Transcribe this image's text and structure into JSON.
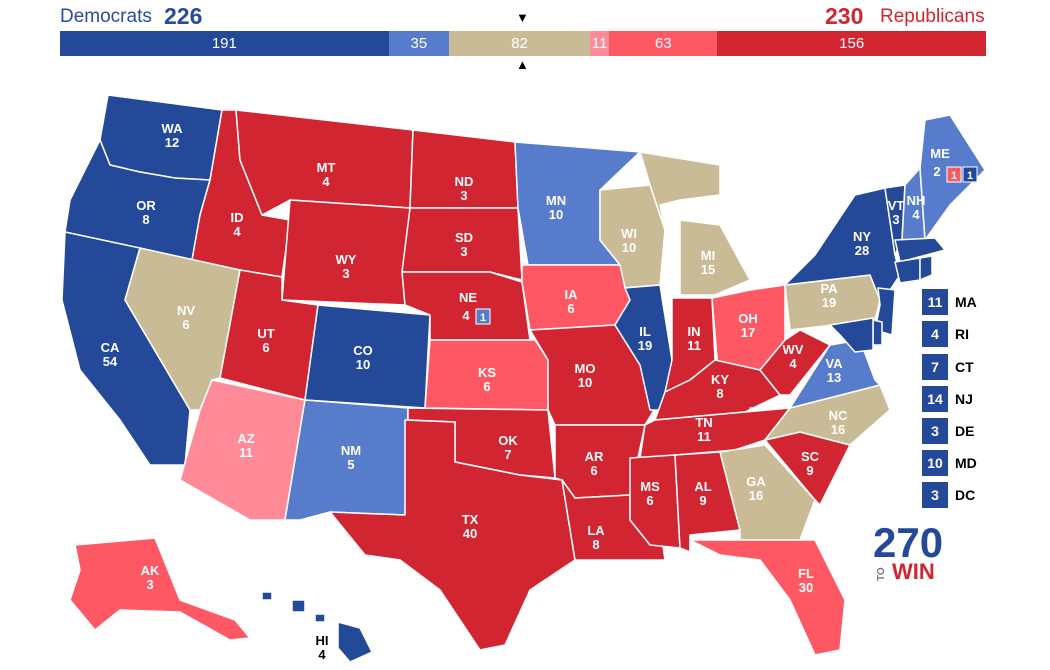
{
  "header": {
    "dem_label": "Democrats",
    "dem_total": "226",
    "rep_total": "230",
    "rep_label": "Republicans",
    "marker_down": "▼",
    "marker_up": "▲"
  },
  "colors": {
    "safe_dem": "#244999",
    "likely_dem": "#577ccc",
    "tossup": "#c9bb95",
    "tilt_rep": "#ff8b98",
    "likely_rep": "#ff5865",
    "safe_rep": "#d22532"
  },
  "tally_bar": [
    {
      "label": "191",
      "value": 191,
      "color": "#244999"
    },
    {
      "label": "35",
      "value": 35,
      "color": "#577ccc"
    },
    {
      "label": "82",
      "value": 82,
      "color": "#c9bb95"
    },
    {
      "label": "11",
      "value": 11,
      "color": "#ff8b98"
    },
    {
      "label": "63",
      "value": 63,
      "color": "#ff5865"
    },
    {
      "label": "156",
      "value": 156,
      "color": "#d22532"
    }
  ],
  "states": [
    {
      "abbr": "WA",
      "votes": "12",
      "color": "#244999"
    },
    {
      "abbr": "OR",
      "votes": "8",
      "color": "#244999"
    },
    {
      "abbr": "CA",
      "votes": "54",
      "color": "#244999"
    },
    {
      "abbr": "ID",
      "votes": "4",
      "color": "#d22532"
    },
    {
      "abbr": "NV",
      "votes": "6",
      "color": "#c9bb95"
    },
    {
      "abbr": "MT",
      "votes": "4",
      "color": "#d22532"
    },
    {
      "abbr": "WY",
      "votes": "3",
      "color": "#d22532"
    },
    {
      "abbr": "UT",
      "votes": "6",
      "color": "#d22532"
    },
    {
      "abbr": "AZ",
      "votes": "11",
      "color": "#ff8b98"
    },
    {
      "abbr": "CO",
      "votes": "10",
      "color": "#244999"
    },
    {
      "abbr": "NM",
      "votes": "5",
      "color": "#577ccc"
    },
    {
      "abbr": "ND",
      "votes": "3",
      "color": "#d22532"
    },
    {
      "abbr": "SD",
      "votes": "3",
      "color": "#d22532"
    },
    {
      "abbr": "NE",
      "votes": "4",
      "color": "#d22532"
    },
    {
      "abbr": "KS",
      "votes": "6",
      "color": "#ff5865"
    },
    {
      "abbr": "OK",
      "votes": "7",
      "color": "#d22532"
    },
    {
      "abbr": "TX",
      "votes": "40",
      "color": "#d22532"
    },
    {
      "abbr": "MN",
      "votes": "10",
      "color": "#577ccc"
    },
    {
      "abbr": "IA",
      "votes": "6",
      "color": "#ff5865"
    },
    {
      "abbr": "MO",
      "votes": "10",
      "color": "#d22532"
    },
    {
      "abbr": "AR",
      "votes": "6",
      "color": "#d22532"
    },
    {
      "abbr": "LA",
      "votes": "8",
      "color": "#d22532"
    },
    {
      "abbr": "WI",
      "votes": "10",
      "color": "#c9bb95"
    },
    {
      "abbr": "IL",
      "votes": "19",
      "color": "#244999"
    },
    {
      "abbr": "MI",
      "votes": "15",
      "color": "#c9bb95"
    },
    {
      "abbr": "IN",
      "votes": "11",
      "color": "#d22532"
    },
    {
      "abbr": "OH",
      "votes": "17",
      "color": "#ff5865"
    },
    {
      "abbr": "KY",
      "votes": "8",
      "color": "#d22532"
    },
    {
      "abbr": "TN",
      "votes": "11",
      "color": "#d22532"
    },
    {
      "abbr": "MS",
      "votes": "6",
      "color": "#d22532"
    },
    {
      "abbr": "AL",
      "votes": "9",
      "color": "#d22532"
    },
    {
      "abbr": "GA",
      "votes": "16",
      "color": "#c9bb95"
    },
    {
      "abbr": "FL",
      "votes": "30",
      "color": "#ff5865"
    },
    {
      "abbr": "SC",
      "votes": "9",
      "color": "#d22532"
    },
    {
      "abbr": "NC",
      "votes": "16",
      "color": "#c9bb95"
    },
    {
      "abbr": "VA",
      "votes": "13",
      "color": "#577ccc"
    },
    {
      "abbr": "WV",
      "votes": "4",
      "color": "#d22532"
    },
    {
      "abbr": "PA",
      "votes": "19",
      "color": "#c9bb95"
    },
    {
      "abbr": "NY",
      "votes": "28",
      "color": "#244999"
    },
    {
      "abbr": "VT",
      "votes": "3",
      "color": "#244999"
    },
    {
      "abbr": "NH",
      "votes": "4",
      "color": "#577ccc"
    },
    {
      "abbr": "ME",
      "votes": "2",
      "color": "#577ccc"
    },
    {
      "abbr": "AK",
      "votes": "3",
      "color": "#ff5865"
    },
    {
      "abbr": "HI",
      "votes": "4",
      "color": "#244999"
    }
  ],
  "districts": [
    {
      "state": "NE",
      "votes": "1",
      "color": "#577ccc"
    },
    {
      "state": "ME",
      "votes": "1",
      "color": "#ff5865"
    },
    {
      "state": "ME",
      "votes": "1",
      "color": "#244999"
    }
  ],
  "small_states": [
    {
      "abbr": "MA",
      "votes": "11",
      "color": "#244999"
    },
    {
      "abbr": "RI",
      "votes": "4",
      "color": "#244999"
    },
    {
      "abbr": "CT",
      "votes": "7",
      "color": "#244999"
    },
    {
      "abbr": "NJ",
      "votes": "14",
      "color": "#244999"
    },
    {
      "abbr": "DE",
      "votes": "3",
      "color": "#244999"
    },
    {
      "abbr": "MD",
      "votes": "10",
      "color": "#244999"
    },
    {
      "abbr": "DC",
      "votes": "3",
      "color": "#244999"
    }
  ],
  "logo": {
    "number": "270",
    "to": "TO",
    "win": "WIN"
  }
}
